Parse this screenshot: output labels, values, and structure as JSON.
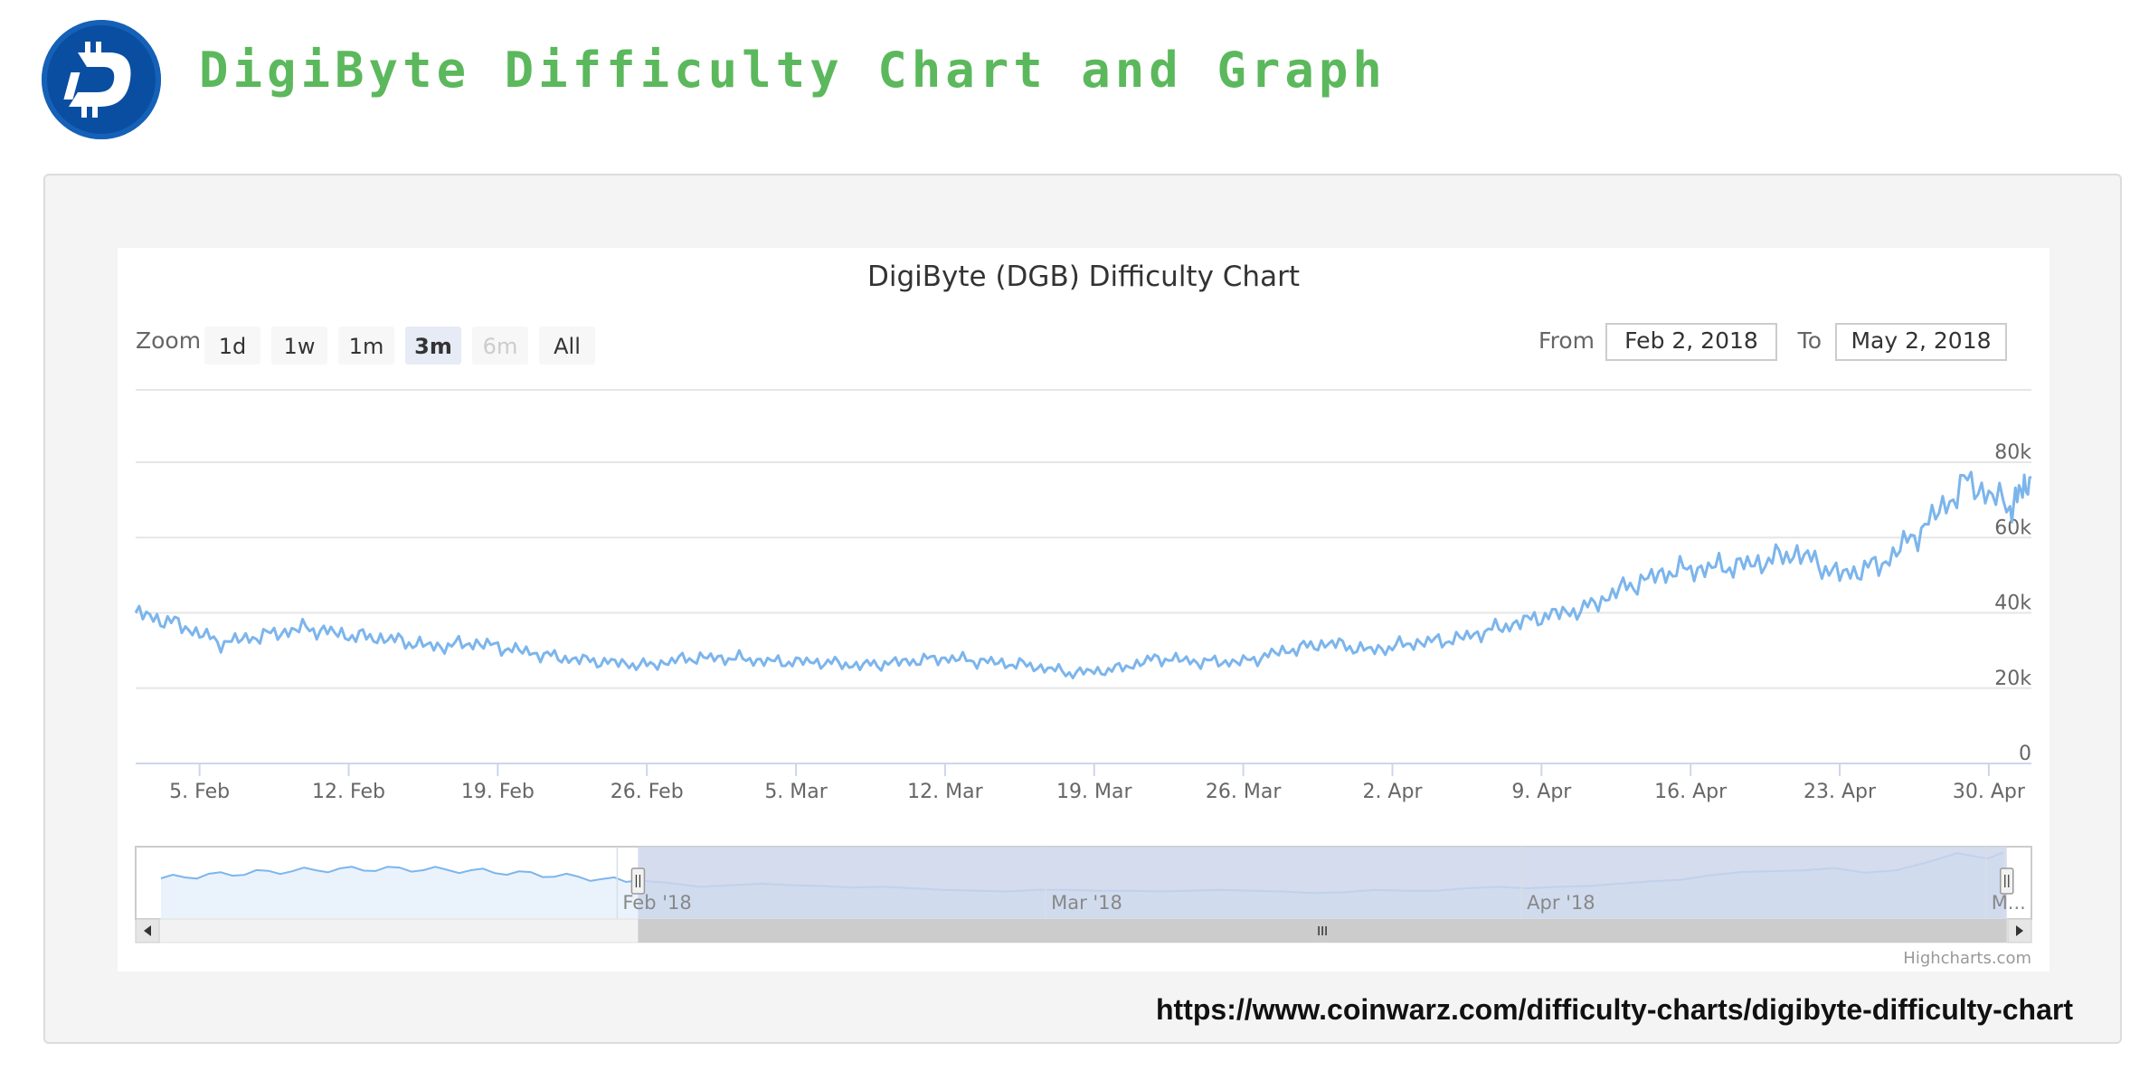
{
  "page": {
    "title": "DigiByte Difficulty Chart and Graph",
    "source_url": "https://www.coinwarz.com/difficulty-charts/digibyte-difficulty-chart",
    "logo_icon": "digibyte-logo-icon"
  },
  "colors": {
    "title_green": "#5cb85c",
    "line": "#7cb5ec",
    "logo_blue": "#0a4ea2",
    "navigator_mask": "#ccd6eb"
  },
  "range_selector": {
    "zoom_label": "Zoom",
    "buttons": [
      {
        "label": "1d",
        "state": "normal"
      },
      {
        "label": "1w",
        "state": "normal"
      },
      {
        "label": "1m",
        "state": "normal"
      },
      {
        "label": "3m",
        "state": "selected"
      },
      {
        "label": "6m",
        "state": "disabled"
      },
      {
        "label": "All",
        "state": "normal"
      }
    ],
    "from_label": "From",
    "from_value": "Feb 2, 2018",
    "to_label": "To",
    "to_value": "May 2, 2018"
  },
  "navigator": {
    "labels": [
      "Feb '18",
      "Mar '18",
      "Apr '18",
      "M..."
    ],
    "selected_range_fraction": [
      0.265,
      0.987
    ]
  },
  "credits": "Highcharts.com",
  "chart_data": {
    "type": "line",
    "title": "DigiByte (DGB) Difficulty Chart",
    "x_tick_labels": [
      "5. Feb",
      "12. Feb",
      "19. Feb",
      "26. Feb",
      "5. Mar",
      "12. Mar",
      "19. Mar",
      "26. Mar",
      "2. Apr",
      "9. Apr",
      "16. Apr",
      "23. Apr",
      "30. Apr"
    ],
    "y_tick_labels": [
      "0",
      "20k",
      "40k",
      "60k",
      "80k"
    ],
    "ylim": [
      0,
      80000
    ],
    "xlim": [
      "2018-02-02",
      "2018-05-02"
    ],
    "grid": true,
    "legend": "none",
    "series": [
      {
        "x": [
          "2018-02-02",
          "2018-02-04",
          "2018-02-06",
          "2018-02-08",
          "2018-02-10",
          "2018-02-12",
          "2018-02-14",
          "2018-02-16",
          "2018-02-18",
          "2018-02-20",
          "2018-02-22",
          "2018-02-24",
          "2018-02-26",
          "2018-02-28",
          "2018-03-02",
          "2018-03-04",
          "2018-03-06",
          "2018-03-08",
          "2018-03-10",
          "2018-03-12",
          "2018-03-14",
          "2018-03-16",
          "2018-03-18",
          "2018-03-20",
          "2018-03-22",
          "2018-03-24",
          "2018-03-26",
          "2018-03-28",
          "2018-03-30",
          "2018-04-01",
          "2018-04-03",
          "2018-04-05",
          "2018-04-07",
          "2018-04-09",
          "2018-04-11",
          "2018-04-13",
          "2018-04-15",
          "2018-04-17",
          "2018-04-19",
          "2018-04-21",
          "2018-04-23",
          "2018-04-25",
          "2018-04-27",
          "2018-04-29",
          "2018-05-01",
          "2018-05-02"
        ],
        "values": [
          40000,
          37000,
          32000,
          34000,
          36000,
          34000,
          33000,
          31000,
          32000,
          30000,
          28000,
          27000,
          26000,
          28000,
          28000,
          27000,
          27000,
          26000,
          27000,
          28000,
          27000,
          26000,
          24000,
          25000,
          28000,
          27000,
          27000,
          30000,
          32000,
          30000,
          32000,
          33000,
          36000,
          39000,
          41000,
          47000,
          51000,
          52000,
          53000,
          56000,
          50000,
          53000,
          63000,
          75000,
          68000,
          76000
        ]
      }
    ]
  }
}
